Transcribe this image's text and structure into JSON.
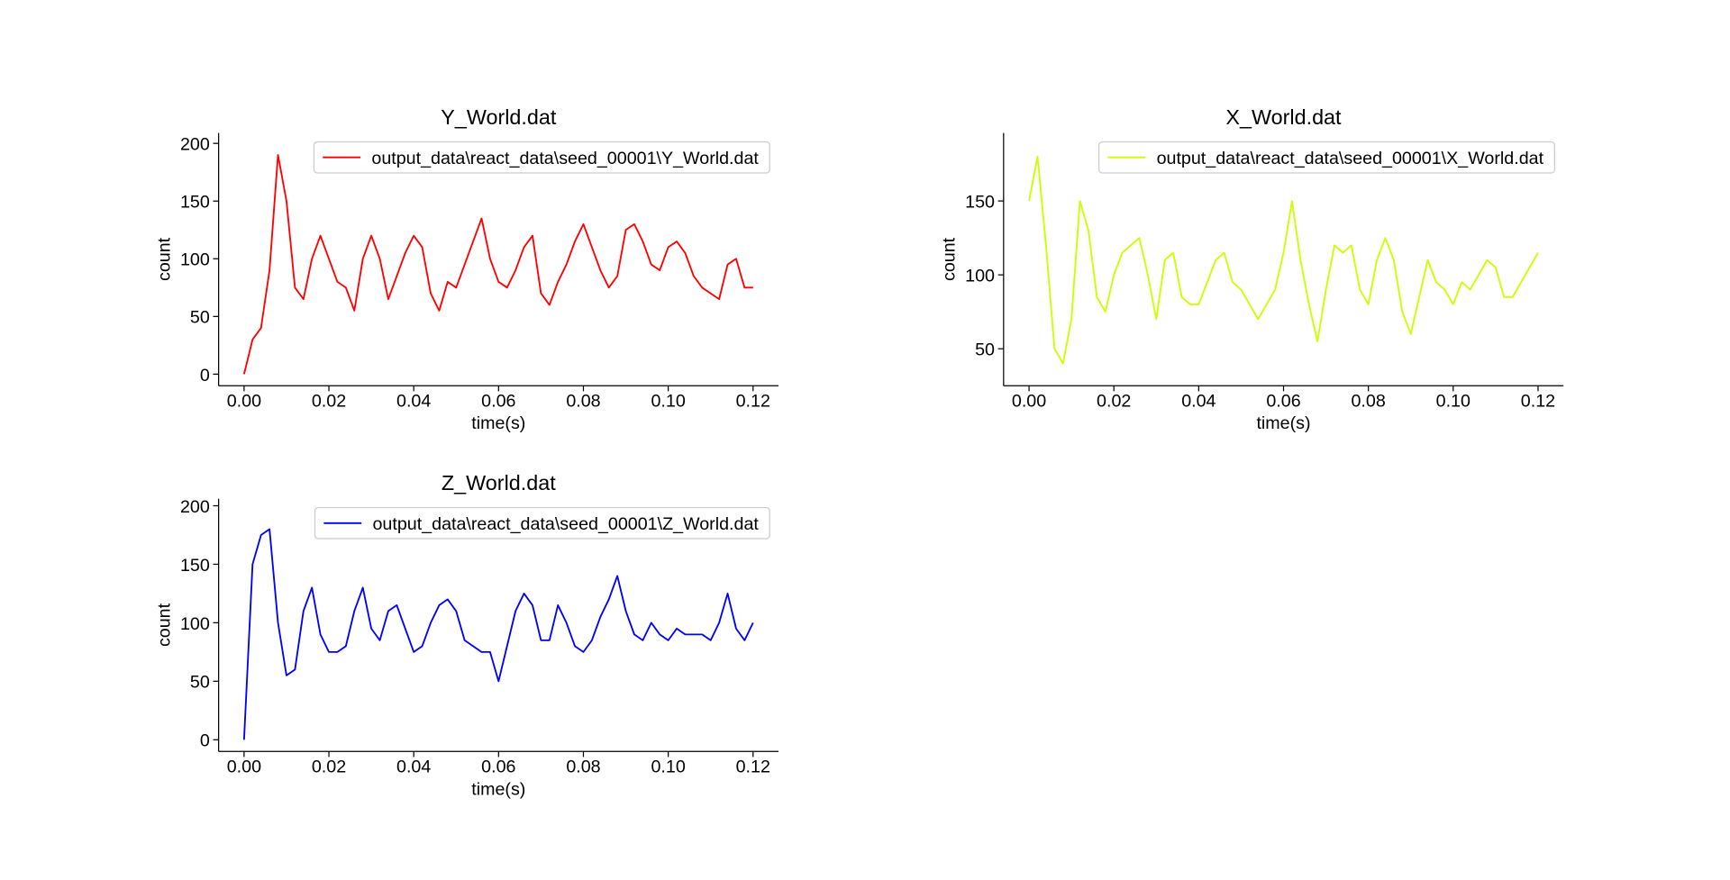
{
  "chart_data": [
    {
      "type": "line",
      "title": "Y_World.dat",
      "xlabel": "time(s)",
      "ylabel": "count",
      "legend": "upper right",
      "x": [
        0,
        0.002,
        0.004,
        0.006,
        0.008,
        0.01,
        0.012,
        0.014,
        0.016,
        0.018,
        0.02,
        0.022,
        0.024,
        0.026,
        0.028,
        0.03,
        0.032,
        0.034,
        0.036,
        0.038,
        0.04,
        0.042,
        0.044,
        0.046,
        0.048,
        0.05,
        0.052,
        0.054,
        0.056,
        0.058,
        0.06,
        0.062,
        0.064,
        0.066,
        0.068,
        0.07,
        0.072,
        0.074,
        0.076,
        0.078,
        0.08,
        0.082,
        0.084,
        0.086,
        0.088,
        0.09,
        0.092,
        0.094,
        0.096,
        0.098,
        0.1,
        0.102,
        0.104,
        0.106,
        0.108,
        0.11,
        0.112,
        0.114,
        0.116,
        0.118,
        0.12
      ],
      "series": [
        {
          "name": "output_data\\react_data\\seed_00001\\Y_World.dat",
          "color": "#ff0000",
          "values": [
            0,
            30,
            40,
            90,
            190,
            150,
            75,
            65,
            100,
            120,
            100,
            80,
            75,
            55,
            100,
            120,
            100,
            65,
            85,
            105,
            120,
            110,
            70,
            55,
            80,
            75,
            95,
            115,
            135,
            100,
            80,
            75,
            90,
            110,
            120,
            70,
            60,
            80,
            95,
            115,
            130,
            110,
            90,
            75,
            85,
            125,
            130,
            115,
            95,
            90,
            110,
            115,
            105,
            85,
            75,
            70,
            65,
            95,
            100,
            75,
            75
          ]
        }
      ],
      "xlim": [
        -0.006,
        0.126
      ],
      "ylim": [
        -10,
        209
      ],
      "xticks": [
        {
          "value": 0,
          "label": "0.00"
        },
        {
          "value": 0.02,
          "label": "0.02"
        },
        {
          "value": 0.04,
          "label": "0.04"
        },
        {
          "value": 0.06,
          "label": "0.06"
        },
        {
          "value": 0.08,
          "label": "0.08"
        },
        {
          "value": 0.1,
          "label": "0.10"
        },
        {
          "value": 0.12,
          "label": "0.12"
        }
      ],
      "yticks": [
        0,
        50,
        100,
        150,
        200
      ]
    },
    {
      "type": "line",
      "title": "X_World.dat",
      "xlabel": "time(s)",
      "ylabel": "count",
      "legend": "upper right",
      "x": [
        0,
        0.002,
        0.004,
        0.006,
        0.008,
        0.01,
        0.012,
        0.014,
        0.016,
        0.018,
        0.02,
        0.022,
        0.024,
        0.026,
        0.028,
        0.03,
        0.032,
        0.034,
        0.036,
        0.038,
        0.04,
        0.042,
        0.044,
        0.046,
        0.048,
        0.05,
        0.052,
        0.054,
        0.056,
        0.058,
        0.06,
        0.062,
        0.064,
        0.066,
        0.068,
        0.07,
        0.072,
        0.074,
        0.076,
        0.078,
        0.08,
        0.082,
        0.084,
        0.086,
        0.088,
        0.09,
        0.092,
        0.094,
        0.096,
        0.098,
        0.1,
        0.102,
        0.104,
        0.106,
        0.108,
        0.11,
        0.112,
        0.114,
        0.116,
        0.118,
        0.12
      ],
      "series": [
        {
          "name": "output_data\\react_data\\seed_00001\\X_World.dat",
          "color": "#ccff00",
          "values": [
            150,
            180,
            120,
            50,
            40,
            70,
            150,
            130,
            85,
            75,
            100,
            115,
            120,
            125,
            100,
            70,
            110,
            115,
            85,
            80,
            80,
            95,
            110,
            115,
            95,
            90,
            80,
            70,
            80,
            90,
            115,
            150,
            110,
            80,
            55,
            90,
            120,
            115,
            120,
            90,
            80,
            110,
            125,
            110,
            75,
            60,
            85,
            110,
            95,
            90,
            80,
            95,
            90,
            100,
            110,
            105,
            85,
            85,
            95,
            105,
            115
          ]
        }
      ],
      "xlim": [
        -0.006,
        0.126
      ],
      "ylim": [
        25,
        196
      ],
      "xticks": [
        {
          "value": 0,
          "label": "0.00"
        },
        {
          "value": 0.02,
          "label": "0.02"
        },
        {
          "value": 0.04,
          "label": "0.04"
        },
        {
          "value": 0.06,
          "label": "0.06"
        },
        {
          "value": 0.08,
          "label": "0.08"
        },
        {
          "value": 0.1,
          "label": "0.10"
        },
        {
          "value": 0.12,
          "label": "0.12"
        }
      ],
      "yticks": [
        50,
        100,
        150
      ]
    },
    {
      "type": "line",
      "title": "Z_World.dat",
      "xlabel": "time(s)",
      "ylabel": "count",
      "legend": "upper right",
      "x": [
        0,
        0.002,
        0.004,
        0.006,
        0.008,
        0.01,
        0.012,
        0.014,
        0.016,
        0.018,
        0.02,
        0.022,
        0.024,
        0.026,
        0.028,
        0.03,
        0.032,
        0.034,
        0.036,
        0.038,
        0.04,
        0.042,
        0.044,
        0.046,
        0.048,
        0.05,
        0.052,
        0.054,
        0.056,
        0.058,
        0.06,
        0.062,
        0.064,
        0.066,
        0.068,
        0.07,
        0.072,
        0.074,
        0.076,
        0.078,
        0.08,
        0.082,
        0.084,
        0.086,
        0.088,
        0.09,
        0.092,
        0.094,
        0.096,
        0.098,
        0.1,
        0.102,
        0.104,
        0.106,
        0.108,
        0.11,
        0.112,
        0.114,
        0.116,
        0.118,
        0.12
      ],
      "series": [
        {
          "name": "output_data\\react_data\\seed_00001\\Z_World.dat",
          "color": "#0000ff",
          "values": [
            0,
            150,
            175,
            180,
            100,
            55,
            60,
            110,
            130,
            90,
            75,
            75,
            80,
            110,
            130,
            95,
            85,
            110,
            115,
            95,
            75,
            80,
            100,
            115,
            120,
            110,
            85,
            80,
            75,
            75,
            50,
            80,
            110,
            125,
            115,
            85,
            85,
            115,
            100,
            80,
            75,
            85,
            105,
            120,
            140,
            110,
            90,
            85,
            100,
            90,
            85,
            95,
            90,
            90,
            90,
            85,
            100,
            125,
            95,
            85,
            100
          ]
        }
      ],
      "xlim": [
        -0.006,
        0.126
      ],
      "ylim": [
        -10,
        206
      ],
      "xticks": [
        {
          "value": 0,
          "label": "0.00"
        },
        {
          "value": 0.02,
          "label": "0.02"
        },
        {
          "value": 0.04,
          "label": "0.04"
        },
        {
          "value": 0.06,
          "label": "0.06"
        },
        {
          "value": 0.08,
          "label": "0.08"
        },
        {
          "value": 0.1,
          "label": "0.10"
        },
        {
          "value": 0.12,
          "label": "0.12"
        }
      ],
      "yticks": [
        0,
        50,
        100,
        150,
        200
      ]
    }
  ]
}
